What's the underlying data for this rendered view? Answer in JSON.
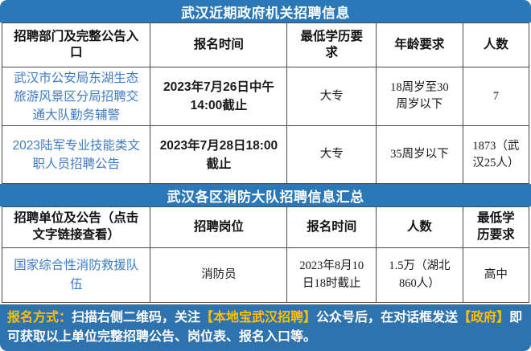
{
  "palette": {
    "header_blue": "#2a78b8",
    "banner_blue": "#2e73ad",
    "link_blue": "#3e7dc6",
    "highlight_gold": "#ffc000",
    "grid_border": "#4a4a4a"
  },
  "section1": {
    "title": "武汉近期政府机关招聘信息",
    "columns": [
      "招聘部门及完整公告入口",
      "报名时间",
      "最低学历要求",
      "年龄要求",
      "人数"
    ],
    "rows": [
      {
        "link": "武汉市公安局东湖生态旅游风景区分局招聘交通大队勤务辅警",
        "deadline": "2023年7月26日中午14:00截止",
        "education": "大专",
        "age": "18周岁至30周岁以下",
        "count": "7"
      },
      {
        "link": "2023陆军专业技能类文职人员招聘公告",
        "deadline": "2023年7月28日18:00截止",
        "education": "大专",
        "age": "35周岁以下",
        "count": "1873（武汉25人）"
      }
    ]
  },
  "section2": {
    "title": "武汉各区消防大队招聘信息汇总",
    "columns": [
      "招聘单位及公告（点击文字链接查看）",
      "招聘岗位",
      "报名时间",
      "人数",
      "最低学历要求"
    ],
    "rows": [
      {
        "link": "国家综合性消防救援队伍",
        "position": "消防员",
        "deadline": "2023年8月10日18时截止",
        "count": "1.5万（湖北860人）",
        "education": "高中"
      }
    ]
  },
  "banner": {
    "label": "报名方式：",
    "seg1": "扫描右侧二维码，关注",
    "highlight1": "【本地宝武汉招聘】",
    "seg2": "公众号后，在对话框发送",
    "highlight2": "【政府】",
    "seg3": "即可获取以上单位完整招聘公告、岗位表、报名入口等。"
  }
}
